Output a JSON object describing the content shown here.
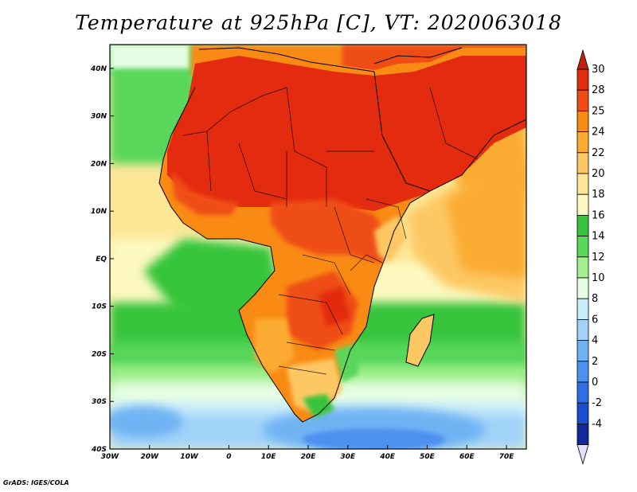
{
  "title": "Temperature at 925hPa [C], VT: 2020063018",
  "credit": "GrADS: IGES/COLA",
  "map": {
    "type": "heatmap",
    "variable": "Temperature at 925hPa",
    "units": "C",
    "valid_time": "2020063018",
    "lon_range": [
      -30,
      75
    ],
    "lat_range": [
      -40,
      45
    ],
    "x_ticks": [
      {
        "value": -30,
        "label": "30W"
      },
      {
        "value": -20,
        "label": "20W"
      },
      {
        "value": -10,
        "label": "10W"
      },
      {
        "value": 0,
        "label": "0"
      },
      {
        "value": 10,
        "label": "10E"
      },
      {
        "value": 20,
        "label": "20E"
      },
      {
        "value": 30,
        "label": "30E"
      },
      {
        "value": 40,
        "label": "40E"
      },
      {
        "value": 50,
        "label": "50E"
      },
      {
        "value": 60,
        "label": "60E"
      },
      {
        "value": 70,
        "label": "70E"
      }
    ],
    "y_ticks": [
      {
        "value": 40,
        "label": "40N"
      },
      {
        "value": 30,
        "label": "30N"
      },
      {
        "value": 20,
        "label": "20N"
      },
      {
        "value": 10,
        "label": "10N"
      },
      {
        "value": 0,
        "label": "EQ"
      },
      {
        "value": -10,
        "label": "10S"
      },
      {
        "value": -20,
        "label": "20S"
      },
      {
        "value": -30,
        "label": "30S"
      },
      {
        "value": -40,
        "label": "40S"
      }
    ]
  },
  "colorbar": {
    "labels": [
      "30",
      "28",
      "25",
      "24",
      "22",
      "20",
      "18",
      "16",
      "14",
      "12",
      "10",
      "8",
      "6",
      "4",
      "2",
      "0",
      "-2",
      "-4"
    ],
    "colors": [
      "#e32c0f",
      "#ef4d14",
      "#f98a14",
      "#fbab32",
      "#fdc864",
      "#fde797",
      "#fdf9c0",
      "#35c43b",
      "#59d75a",
      "#a3f08f",
      "#e4fde3",
      "#c9ecfa",
      "#a1d3f9",
      "#6fb3f3",
      "#4e90f0",
      "#2f6ee3",
      "#1a4ed0",
      "#0f2a9b"
    ],
    "top_arrow_color": "#c2200c",
    "bottom_arrow_color": "#e0e0fa"
  }
}
